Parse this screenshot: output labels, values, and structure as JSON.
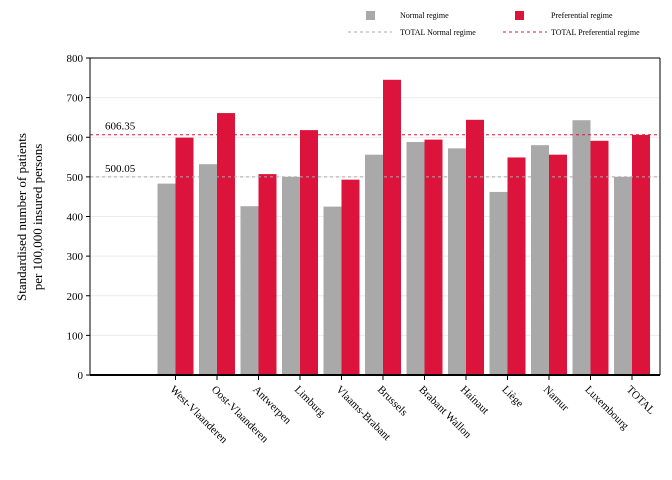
{
  "chart_data": {
    "type": "bar",
    "ylabel": [
      "Standardised number of patients",
      "per 100,000 insured persons"
    ],
    "ylim": [
      0,
      800
    ],
    "yticks": [
      0,
      100,
      200,
      300,
      400,
      500,
      600,
      700,
      800
    ],
    "grid": "horizontal",
    "legend_position": "top-right",
    "categories": [
      "West-Vlaanderen",
      "Oost-Vlaanderen",
      "Antwerpen",
      "Limburg",
      "Vlaams-Brabant",
      "Brussels",
      "Brabant Wallon",
      "Hainaut",
      "Liège",
      "Namur",
      "Luxembourg",
      "TOTAL"
    ],
    "series": [
      {
        "name": "Normal regime",
        "color": "#a9a9a9",
        "values": [
          483,
          532,
          426,
          500,
          425,
          556,
          588,
          572,
          462,
          580,
          643,
          500
        ]
      },
      {
        "name": "Preferential regime",
        "color": "#dc143c",
        "values": [
          599,
          661,
          507,
          618,
          493,
          745,
          594,
          644,
          549,
          556,
          591,
          606
        ]
      }
    ],
    "reference_lines": [
      {
        "name": "TOTAL Normal regime",
        "value": 500.05,
        "label": "500.05",
        "color": "#a9a9a9"
      },
      {
        "name": "TOTAL Preferential regime",
        "value": 606.35,
        "label": "606.35",
        "color": "#dc143c"
      }
    ]
  }
}
